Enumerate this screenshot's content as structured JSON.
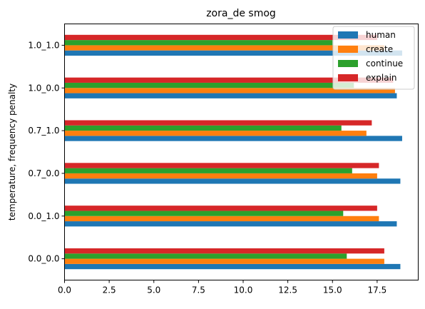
{
  "chart_data": {
    "type": "bar",
    "orientation": "horizontal",
    "title": "zora_de smog",
    "xlabel": "",
    "ylabel": "temperature, frequency penalty",
    "xlim": [
      0,
      19.8
    ],
    "xticks": [
      "0.0",
      "2.5",
      "5.0",
      "7.5",
      "10.0",
      "12.5",
      "15.0",
      "17.5"
    ],
    "categories": [
      "0.0_0.0",
      "0.0_1.0",
      "0.7_0.0",
      "0.7_1.0",
      "1.0_0.0",
      "1.0_1.0"
    ],
    "series": [
      {
        "name": "human",
        "color": "#1f77b4",
        "values": [
          18.8,
          18.6,
          18.8,
          18.9,
          18.6,
          18.9
        ]
      },
      {
        "name": "create",
        "color": "#ff7f0e",
        "values": [
          17.9,
          17.6,
          17.5,
          16.9,
          18.5,
          17.9
        ]
      },
      {
        "name": "continue",
        "color": "#2ca02c",
        "values": [
          15.8,
          15.6,
          16.1,
          15.5,
          16.2,
          15.0
        ]
      },
      {
        "name": "explain",
        "color": "#d62728",
        "values": [
          17.9,
          17.5,
          17.6,
          17.2,
          18.4,
          17.5
        ]
      }
    ],
    "grid": false,
    "legend_position": "top-right"
  }
}
